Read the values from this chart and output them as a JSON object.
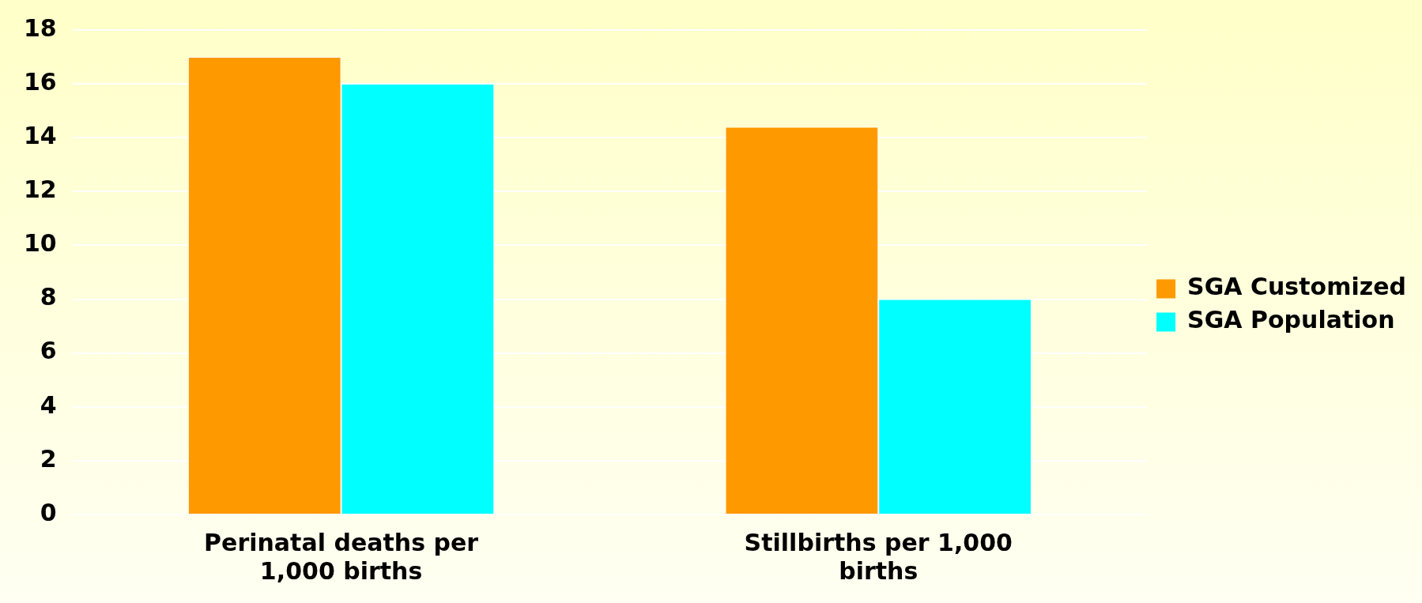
{
  "chart_data": {
    "type": "bar",
    "categories": [
      "Perinatal deaths per 1,000 births",
      "Stillbirths per 1,000 births"
    ],
    "series": [
      {
        "name": "SGA Customized",
        "color": "#ff9900",
        "values": [
          17,
          14.4
        ]
      },
      {
        "name": "SGA Population",
        "color": "#00ffff",
        "values": [
          16,
          8
        ]
      }
    ],
    "ylim": [
      0,
      18
    ],
    "yticks": [
      0,
      2,
      4,
      6,
      8,
      10,
      12,
      14,
      16,
      18
    ],
    "grid": "y",
    "legend": "right"
  }
}
